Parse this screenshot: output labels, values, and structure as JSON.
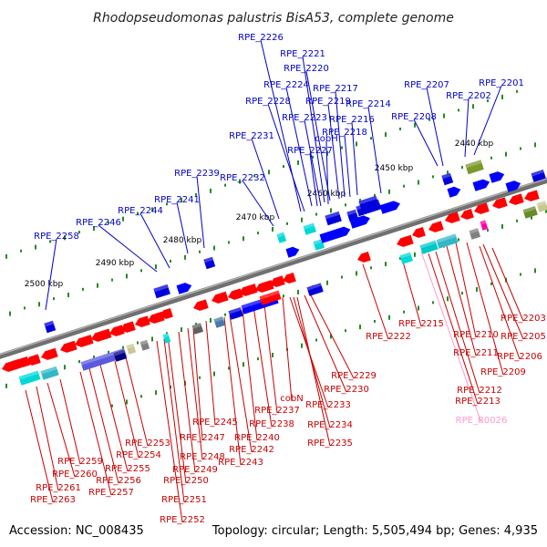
{
  "title": "Rhodopseudomonas palustris BisA53, complete genome",
  "footer": {
    "accession": "Accession: NC_008435",
    "summary": "Topology: circular; Length: 5,505,494 bp; Genes: 4,935"
  },
  "colors": {
    "backbone": "#808080",
    "forward_label": "#0000c8",
    "reverse_label": "#c80000",
    "rna_label": "#ff99cc",
    "tick": "#228b22"
  },
  "kbp_marks": [
    "2440 kbp",
    "2450 kbp",
    "2460 kbp",
    "2470 kbp",
    "2480 kbp",
    "2490 kbp",
    "2500 kbp"
  ],
  "forward_genes": [
    "RPE_2226",
    "RPE_2221",
    "RPE_2220",
    "RPE_2224",
    "RPE_2217",
    "RPE_2219",
    "RPE_2228",
    "RPE_2214",
    "RPE_2223",
    "RPE_2216",
    "cobH",
    "RPE_2218",
    "RPE_2231",
    "RPE_2227",
    "RPE_2207",
    "RPE_2201",
    "RPE_2202",
    "RPE_2208",
    "RPE_2239",
    "RPE_2232",
    "RPE_2241",
    "RPE_2244",
    "RPE_2246",
    "RPE_2258"
  ],
  "reverse_genes": [
    "RPE_2203",
    "RPE_2205",
    "RPE_2215",
    "RPE_2210",
    "RPE_2206",
    "RPE_2222",
    "RPE_2211",
    "RPE_2209",
    "RPE_2229",
    "RPE_2230",
    "RPE_2212",
    "RPE_2213",
    "cobN",
    "RPE_2233",
    "RPE_2237",
    "RPE_2245",
    "RPE_2238",
    "RPE_2234",
    "RPE_2247",
    "RPE_2240",
    "RPE_2253",
    "RPE_2235",
    "RPE_2248",
    "RPE_2242",
    "RPE_2254",
    "RPE_2259",
    "RPE_2243",
    "RPE_2249",
    "RPE_2255",
    "RPE_2260",
    "RPE_2256",
    "RPE_2250",
    "RPE_2261",
    "RPE_2257",
    "RPE_2251",
    "RPE_2263",
    "RPE_2252"
  ],
  "rna_genes": [
    "RPE_R0026"
  ]
}
